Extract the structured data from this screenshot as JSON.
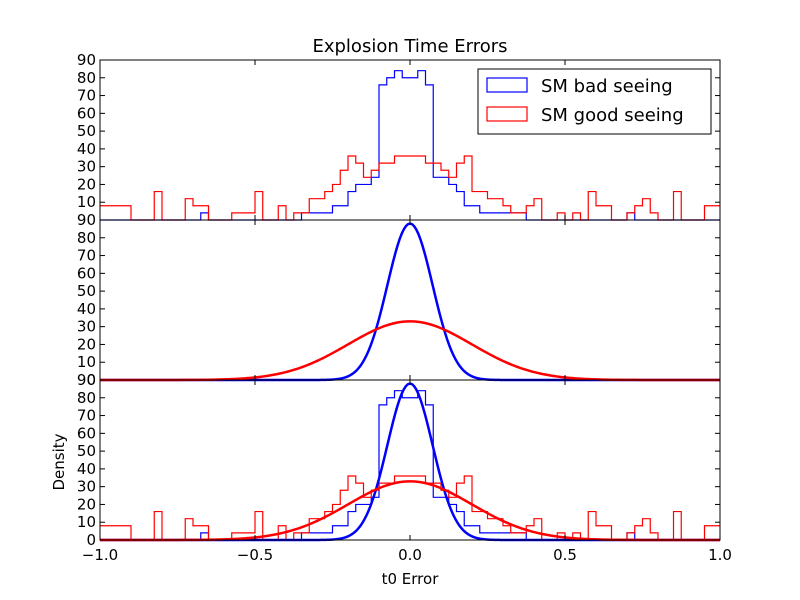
{
  "chart_data": {
    "type": "line",
    "title": "Explosion Time Errors",
    "xlabel": "t0 Error",
    "ylabel": "Density",
    "xlim": [
      -1.0,
      1.0
    ],
    "ylim": [
      0,
      90
    ],
    "xticks": [
      -1.0,
      -0.5,
      0.0,
      0.5,
      1.0
    ],
    "xtick_labels": [
      "−1.0",
      "−0.5",
      "0.0",
      "0.5",
      "1.0"
    ],
    "yticks_top": [
      10,
      20,
      30,
      40,
      50,
      60,
      70,
      80,
      90
    ],
    "yticks_lower": [
      0,
      10,
      20,
      30,
      40,
      50,
      60,
      70,
      80
    ],
    "legend": {
      "placement": "top-right",
      "entries": [
        {
          "label": "SM bad seeing",
          "color": "#0000ff"
        },
        {
          "label": "SM good seeing",
          "color": "#ff0000"
        }
      ]
    },
    "panels": [
      {
        "name": "top",
        "contents": [
          "histogram"
        ],
        "yticks": "yticks_top"
      },
      {
        "name": "middle",
        "contents": [
          "kde"
        ],
        "yticks": "yticks_lower",
        "extra_top_tick": "90"
      },
      {
        "name": "bottom",
        "contents": [
          "histogram",
          "kde"
        ],
        "yticks": "yticks_lower",
        "extra_top_tick": "90"
      }
    ],
    "histogram": {
      "bin_edges": [
        -1.0,
        -0.975,
        -0.95,
        -0.925,
        -0.9,
        -0.875,
        -0.85,
        -0.825,
        -0.8,
        -0.775,
        -0.75,
        -0.725,
        -0.7,
        -0.675,
        -0.65,
        -0.625,
        -0.6,
        -0.575,
        -0.55,
        -0.525,
        -0.5,
        -0.475,
        -0.45,
        -0.425,
        -0.4,
        -0.375,
        -0.35,
        -0.325,
        -0.3,
        -0.275,
        -0.25,
        -0.225,
        -0.2,
        -0.175,
        -0.15,
        -0.125,
        -0.1,
        -0.075,
        -0.05,
        -0.025,
        0.0,
        0.025,
        0.05,
        0.075,
        0.1,
        0.125,
        0.15,
        0.175,
        0.2,
        0.225,
        0.25,
        0.275,
        0.3,
        0.325,
        0.35,
        0.375,
        0.4,
        0.425,
        0.45,
        0.475,
        0.5,
        0.525,
        0.55,
        0.575,
        0.6,
        0.625,
        0.65,
        0.675,
        0.7,
        0.725,
        0.75,
        0.775,
        0.8,
        0.825,
        0.85,
        0.875,
        0.9,
        0.925,
        0.95,
        0.975,
        1.0
      ],
      "series": [
        {
          "name": "SM bad seeing",
          "color": "#0000ff",
          "values": [
            0,
            0,
            0,
            0,
            0,
            0,
            0,
            0,
            0,
            0,
            0,
            0,
            0,
            4,
            0,
            0,
            0,
            0,
            0,
            0,
            0,
            0,
            0,
            0,
            0,
            0,
            4,
            4,
            4,
            4,
            8,
            8,
            16,
            20,
            20,
            24,
            76,
            80,
            84,
            80,
            80,
            84,
            76,
            24,
            24,
            20,
            16,
            8,
            8,
            4,
            4,
            4,
            4,
            4,
            4,
            0,
            0,
            0,
            0,
            0,
            0,
            0,
            0,
            0,
            0,
            0,
            0,
            0,
            4,
            0,
            0,
            0,
            0,
            0,
            0,
            0,
            0,
            0,
            0,
            0
          ]
        },
        {
          "name": "SM good seeing",
          "color": "#ff0000",
          "values": [
            8,
            8,
            8,
            8,
            0,
            0,
            0,
            16,
            0,
            0,
            0,
            12,
            8,
            8,
            0,
            0,
            0,
            4,
            4,
            4,
            16,
            0,
            0,
            8,
            0,
            4,
            4,
            12,
            12,
            16,
            20,
            28,
            36,
            32,
            24,
            28,
            32,
            32,
            36,
            36,
            36,
            36,
            32,
            32,
            28,
            24,
            32,
            36,
            16,
            16,
            12,
            12,
            8,
            4,
            4,
            8,
            12,
            0,
            0,
            4,
            0,
            4,
            0,
            16,
            8,
            8,
            0,
            0,
            4,
            8,
            12,
            4,
            0,
            0,
            16,
            0,
            0,
            0,
            8,
            8
          ]
        }
      ]
    },
    "kde": {
      "series": [
        {
          "name": "SM bad seeing",
          "color": "#0000ff",
          "peak": 88,
          "mean": 0.0,
          "sigma": 0.073
        },
        {
          "name": "SM good seeing",
          "color": "#ff0000",
          "peak": 33,
          "mean": 0.0,
          "sigma": 0.2
        }
      ]
    }
  }
}
